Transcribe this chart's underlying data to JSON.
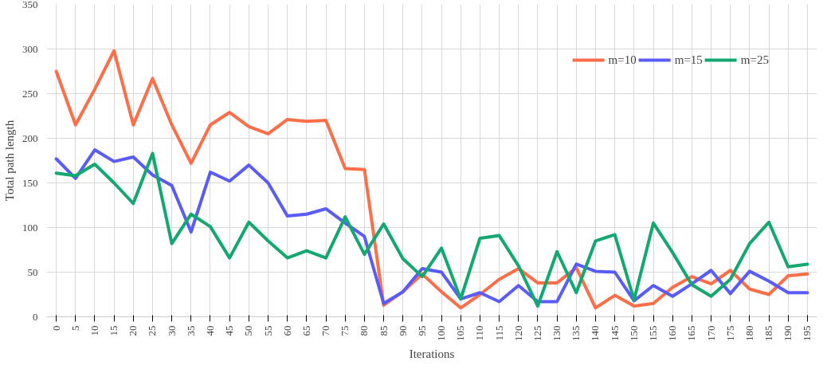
{
  "chart_data": {
    "type": "line",
    "xlabel": "Iterations",
    "ylabel": "Total path length",
    "categories": [
      "0",
      "5",
      "10",
      "15",
      "20",
      "25",
      "30",
      "35",
      "40",
      "45",
      "50",
      "55",
      "60",
      "65",
      "70",
      "75",
      "80",
      "85",
      "90",
      "95",
      "100",
      "105",
      "110",
      "115",
      "120",
      "125",
      "130",
      "135",
      "140",
      "145",
      "150",
      "155",
      "160",
      "165",
      "170",
      "175",
      "180",
      "185",
      "190",
      "195"
    ],
    "series": [
      {
        "name": "m=10",
        "color": "#ff6e48",
        "values": [
          275,
          215,
          255,
          298,
          215,
          267,
          215,
          172,
          215,
          229,
          213,
          205,
          221,
          219,
          220,
          166,
          165,
          13,
          28,
          48,
          28,
          10,
          25,
          42,
          54,
          38,
          38,
          55,
          10,
          24,
          12,
          15,
          33,
          45,
          37,
          52,
          31,
          25,
          46,
          48
        ]
      },
      {
        "name": "m=15",
        "color": "#5a5cfa",
        "values": [
          177,
          155,
          187,
          174,
          179,
          159,
          147,
          95,
          162,
          152,
          170,
          150,
          113,
          115,
          121,
          105,
          90,
          15,
          28,
          54,
          50,
          20,
          27,
          17,
          35,
          17,
          17,
          59,
          51,
          50,
          18,
          35,
          23,
          37,
          52,
          26,
          51,
          40,
          27,
          27
        ]
      },
      {
        "name": "m=25",
        "color": "#12a870",
        "values": [
          161,
          158,
          171,
          150,
          127,
          183,
          82,
          115,
          101,
          66,
          106,
          85,
          66,
          74,
          66,
          112,
          70,
          104,
          65,
          45,
          77,
          20,
          88,
          91,
          57,
          12,
          73,
          27,
          85,
          92,
          19,
          105,
          72,
          36,
          23,
          42,
          82,
          106,
          56,
          59
        ]
      }
    ],
    "ylim": [
      0,
      350
    ],
    "yticks": [
      0,
      50,
      100,
      150,
      200,
      250,
      300,
      350
    ],
    "grid": true,
    "legend": "top right",
    "marker": "none",
    "line_style": "solid"
  }
}
